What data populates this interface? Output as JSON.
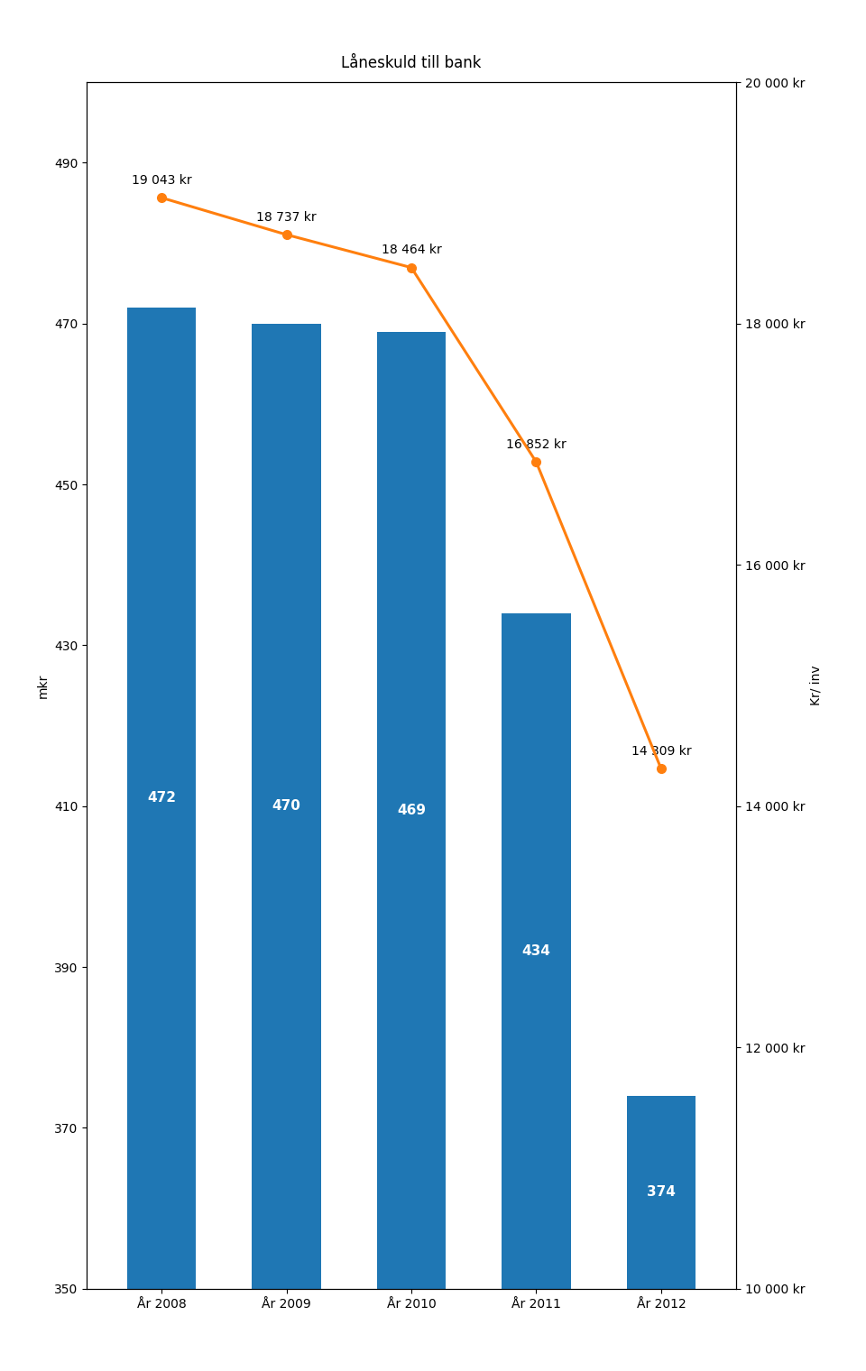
{
  "chart_data": {
    "type": "bar",
    "title": "Låneskuld till bank",
    "ylabel": "mkr",
    "y2label": "Kr/ inv",
    "categories": [
      "År 2008",
      "År 2009",
      "År 2010",
      "År 2011",
      "År 2012"
    ],
    "series": [
      {
        "type": "bar",
        "values": [
          472,
          470,
          469,
          434,
          374
        ],
        "data_labels": true
      },
      {
        "type": "line",
        "axis": "y2",
        "marker": "o",
        "values": [
          19043,
          18737,
          18464,
          16852,
          14309
        ],
        "value_labels": [
          "19 043 kr",
          "18 737 kr",
          "18 464 kr",
          "16 852 kr",
          "14 309 kr"
        ],
        "data_labels": true
      }
    ],
    "ylim": [
      350,
      500
    ],
    "yticks": [
      350,
      370,
      390,
      410,
      430,
      450,
      470,
      490
    ],
    "y2lim": [
      10000,
      20000
    ],
    "y2ticks": [
      {
        "value": 10000,
        "label": "10 000 kr"
      },
      {
        "value": 12000,
        "label": "12 000 kr"
      },
      {
        "value": 14000,
        "label": "14 000 kr"
      },
      {
        "value": 16000,
        "label": "16 000 kr"
      },
      {
        "value": 18000,
        "label": "18 000 kr"
      },
      {
        "value": 20000,
        "label": "20 000 kr"
      }
    ],
    "grid": false
  }
}
